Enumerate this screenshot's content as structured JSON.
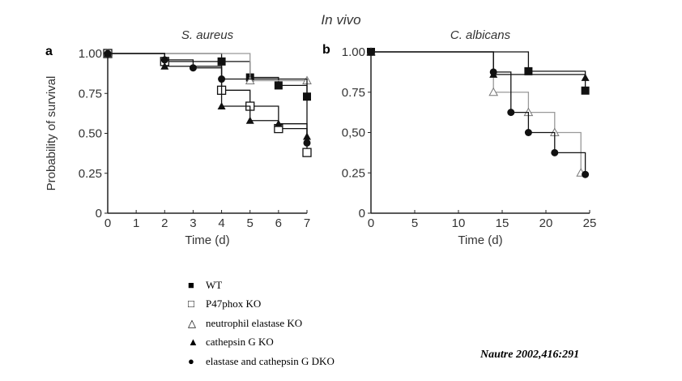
{
  "figure_title": "In vivo",
  "citation": "Nautre 2002,416:291",
  "legend": [
    {
      "symbol": "filled-square",
      "label": "WT"
    },
    {
      "symbol": "open-square",
      "label": "P47phox KO"
    },
    {
      "symbol": "open-triangle",
      "label": "neutrophil elastase KO"
    },
    {
      "symbol": "filled-triangle",
      "label": "cathepsin G KO"
    },
    {
      "symbol": "filled-circle",
      "label": "elastase and cathepsin G DKO"
    }
  ],
  "chart_data": [
    {
      "type": "line",
      "step": true,
      "panel": "a",
      "title": "S. aureus",
      "xlabel": "Time (d)",
      "ylabel": "Probability of survival",
      "xlim": [
        0,
        7
      ],
      "ylim": [
        0,
        1
      ],
      "xticks": [
        "0",
        "1",
        "2",
        "3",
        "4",
        "5",
        "6",
        "7"
      ],
      "yticks": [
        "0",
        "0.25",
        "0.50",
        "0.75",
        "1.00"
      ],
      "series": [
        {
          "name": "WT",
          "symbol": "filled-square",
          "x": [
            0,
            4,
            5,
            6,
            7
          ],
          "y": [
            1.0,
            0.95,
            0.85,
            0.8,
            0.73
          ]
        },
        {
          "name": "P47phox KO",
          "symbol": "open-square",
          "x": [
            0,
            2,
            4,
            5,
            6,
            7
          ],
          "y": [
            1.0,
            0.95,
            0.77,
            0.67,
            0.53,
            0.38
          ]
        },
        {
          "name": "neutrophil elastase KO",
          "symbol": "open-triangle",
          "x": [
            0,
            5,
            7
          ],
          "y": [
            1.0,
            0.83,
            0.83
          ]
        },
        {
          "name": "cathepsin G KO",
          "symbol": "filled-triangle",
          "x": [
            0,
            2,
            4,
            5,
            6,
            7
          ],
          "y": [
            1.0,
            0.92,
            0.67,
            0.58,
            0.56,
            0.48
          ]
        },
        {
          "name": "elastase and cathepsin G DKO",
          "symbol": "filled-circle",
          "x": [
            0,
            2,
            3,
            4,
            7
          ],
          "y": [
            1.0,
            0.96,
            0.91,
            0.84,
            0.44
          ]
        }
      ]
    },
    {
      "type": "line",
      "step": true,
      "panel": "b",
      "title": "C. albicans",
      "xlabel": "Time (d)",
      "ylabel": "",
      "xlim": [
        0,
        25
      ],
      "ylim": [
        0,
        1
      ],
      "xticks": [
        "0",
        "5",
        "10",
        "15",
        "20",
        "25"
      ],
      "yticks": [
        "0",
        "0.25",
        "0,50",
        "0.75",
        "1.00"
      ],
      "series": [
        {
          "name": "WT",
          "symbol": "filled-square",
          "x": [
            0,
            18,
            24.5
          ],
          "y": [
            1.0,
            0.88,
            0.76
          ]
        },
        {
          "name": "neutrophil elastase KO",
          "symbol": "open-triangle",
          "x": [
            0,
            14,
            18,
            21,
            24
          ],
          "y": [
            1.0,
            0.75,
            0.625,
            0.5,
            0.25
          ]
        },
        {
          "name": "cathepsin G KO",
          "symbol": "filled-triangle",
          "x": [
            0,
            14,
            24.5
          ],
          "y": [
            1.0,
            0.86,
            0.84
          ]
        },
        {
          "name": "elastase and cathepsin G DKO",
          "symbol": "filled-circle",
          "x": [
            0,
            14,
            16,
            18,
            21,
            24.5
          ],
          "y": [
            1.0,
            0.875,
            0.625,
            0.5,
            0.375,
            0.24
          ]
        }
      ]
    }
  ]
}
